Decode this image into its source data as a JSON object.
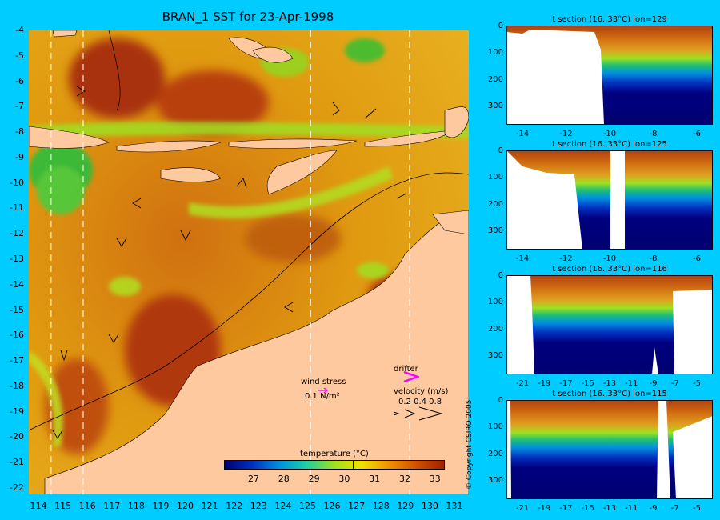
{
  "title": "BRAN_1 SST for 23-Apr-1998",
  "main_map": {
    "y_ticks": [
      "-4",
      "-5",
      "-6",
      "-7",
      "-8",
      "-9",
      "-10",
      "-11",
      "-12",
      "-13",
      "-14",
      "-15",
      "-16",
      "-17",
      "-18",
      "-19",
      "-20",
      "-21",
      "-22"
    ],
    "x_ticks": [
      "114",
      "115",
      "116",
      "117",
      "118",
      "119",
      "120",
      "121",
      "122",
      "123",
      "124",
      "125",
      "126",
      "127",
      "128",
      "129",
      "130",
      "131"
    ],
    "section_longitudes": [
      114.5,
      115.8,
      125,
      129
    ]
  },
  "colorbar": {
    "label": "temperature (°C)",
    "ticks": [
      "27",
      "28",
      "29",
      "30",
      "31",
      "32",
      "33"
    ],
    "colors": [
      "#000070",
      "#0030c0",
      "#0090e0",
      "#20d0a0",
      "#a0e020",
      "#f0e000",
      "#f09000",
      "#d05000",
      "#a02000"
    ]
  },
  "legend": {
    "wind_label": "wind stress",
    "wind_value": "0.1 N/m²",
    "drifter_label": "drifter",
    "velocity_label": "velocity (m/s)",
    "velocity_values": "0.2 0.4 0.8"
  },
  "sections": [
    {
      "title": "t section (16..33°C) lon=129",
      "x_ticks": [
        "-14",
        "-12",
        "-10",
        "-8",
        "-6"
      ],
      "y_ticks": [
        "0",
        "100",
        "200",
        "300"
      ]
    },
    {
      "title": "t section (16..33°C) lon=125",
      "x_ticks": [
        "-14",
        "-12",
        "-10",
        "-8",
        "-6"
      ],
      "y_ticks": [
        "0",
        "100",
        "200",
        "300"
      ]
    },
    {
      "title": "t section (16..33°C) lon=116",
      "x_ticks": [
        "-21",
        "-19",
        "-17",
        "-15",
        "-13",
        "-11",
        "-9",
        "-7",
        "-5"
      ],
      "y_ticks": [
        "0",
        "100",
        "200",
        "300"
      ]
    },
    {
      "title": "t section (16..33°C) lon=115",
      "x_ticks": [
        "-21",
        "-19",
        "-17",
        "-15",
        "-13",
        "-11",
        "-9",
        "-7",
        "-5"
      ],
      "y_ticks": [
        "0",
        "100",
        "200",
        "300"
      ]
    }
  ],
  "copyright": "© Copyright CSIRO 2005"
}
